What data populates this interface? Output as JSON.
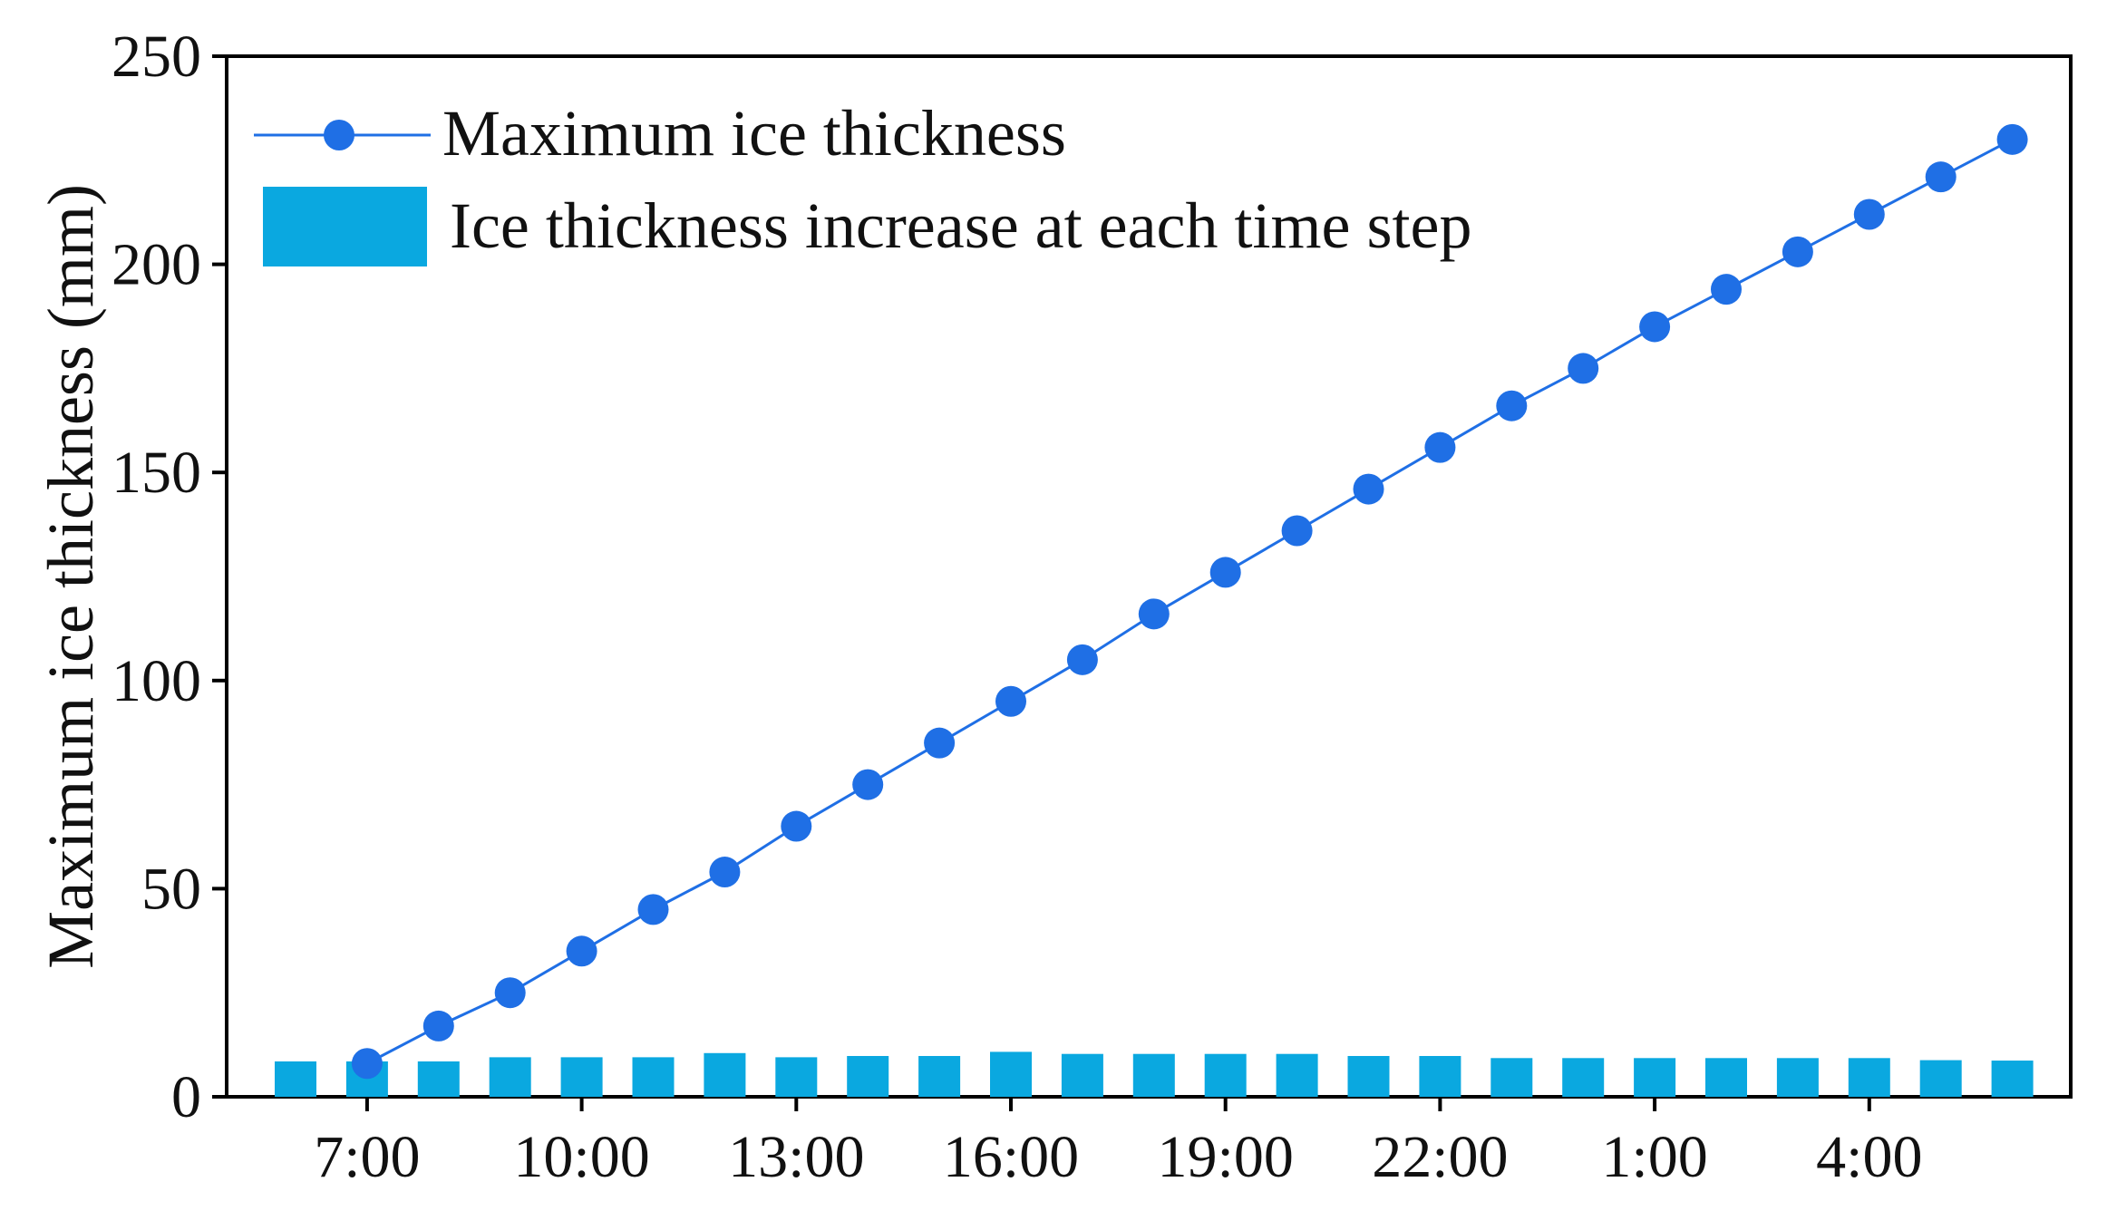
{
  "chart_data": {
    "type": "bar+line",
    "title": "",
    "xlabel": "",
    "ylabel": "Maximum ice thickness (mm)",
    "ylim": [
      0,
      250
    ],
    "yticks": [
      0,
      50,
      100,
      150,
      200,
      250
    ],
    "x_points": 25,
    "x_tick_labels": [
      {
        "index": 1,
        "label": "7:00"
      },
      {
        "index": 4,
        "label": "10:00"
      },
      {
        "index": 7,
        "label": "13:00"
      },
      {
        "index": 10,
        "label": "16:00"
      },
      {
        "index": 13,
        "label": "19:00"
      },
      {
        "index": 16,
        "label": "22:00"
      },
      {
        "index": 19,
        "label": "1:00"
      },
      {
        "index": 22,
        "label": "4:00"
      }
    ],
    "legend_position": "top-left",
    "series": [
      {
        "name": "Maximum ice thickness",
        "kind": "line",
        "color": "#1f6fe5",
        "start_index": 1,
        "values": [
          8,
          17,
          25,
          35,
          45,
          54,
          65,
          75,
          85,
          95,
          105,
          116,
          126,
          136,
          146,
          156,
          166,
          175,
          185,
          194,
          203,
          212,
          221,
          230
        ]
      },
      {
        "name": "Ice thickness increase at each time step",
        "kind": "bar",
        "color": "#0aa8e0",
        "start_index": 0,
        "values": [
          8.5,
          8.5,
          8.5,
          9.5,
          9.5,
          9.5,
          10.5,
          9.5,
          9.8,
          9.8,
          10.8,
          10.3,
          10.3,
          10.3,
          10.3,
          9.8,
          9.8,
          9.3,
          9.3,
          9.3,
          9.3,
          9.3,
          9.3,
          8.8,
          8.7
        ]
      }
    ]
  }
}
